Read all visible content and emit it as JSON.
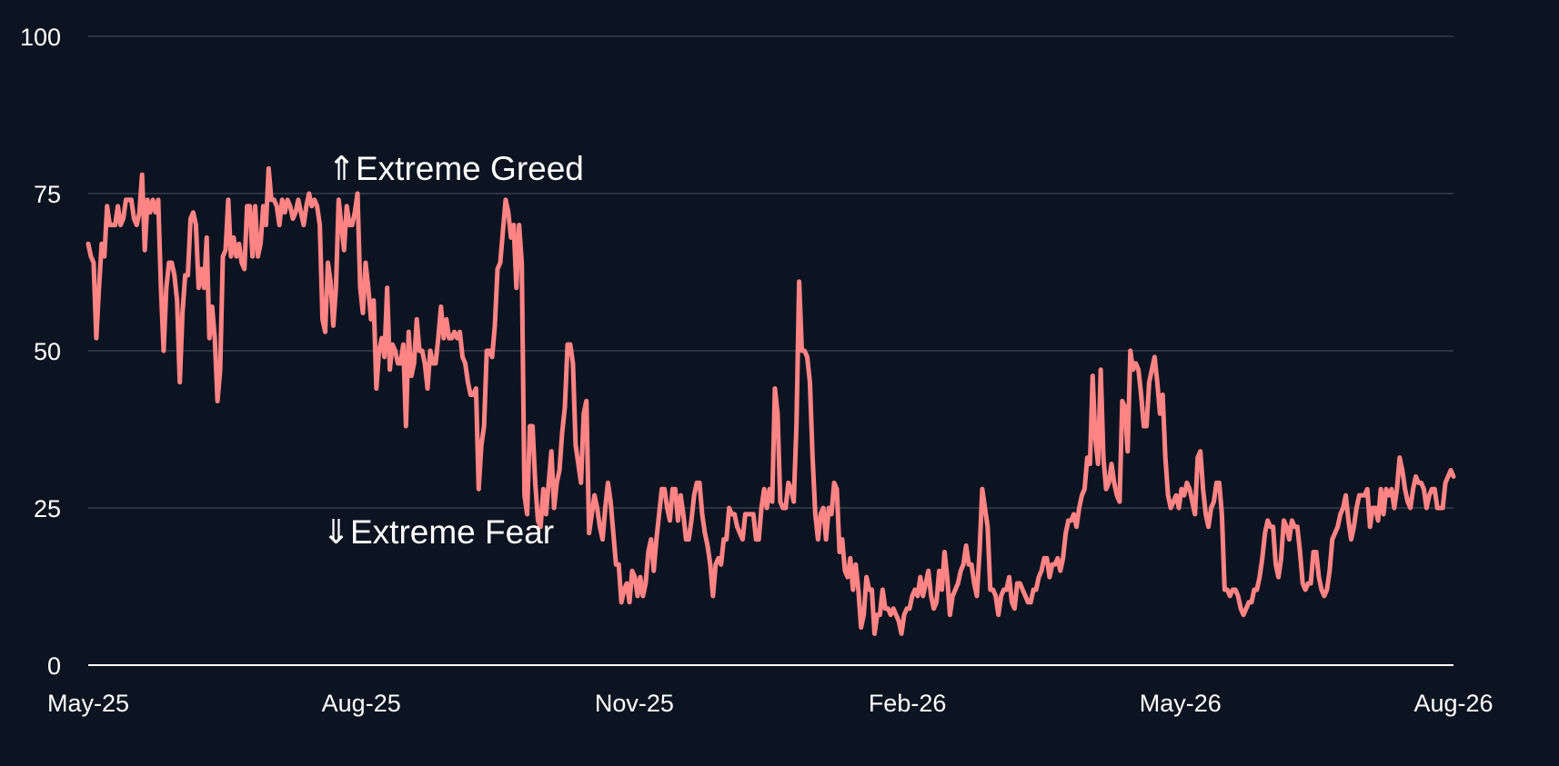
{
  "chart_data": {
    "type": "line",
    "title": "",
    "xlabel": "",
    "ylabel": "",
    "ylim": [
      0,
      100
    ],
    "yticks": [
      0,
      25,
      50,
      75,
      100
    ],
    "xticks": [
      "May-25",
      "Aug-25",
      "Nov-25",
      "Feb-26",
      "May-26",
      "Aug-26"
    ],
    "xlim": [
      "2025-05-01",
      "2026-08-01"
    ],
    "grid": true,
    "line_color": "#ff8484",
    "series": [
      {
        "values": [
          67,
          65,
          64,
          52,
          60,
          67,
          65,
          73,
          70,
          70,
          70,
          73,
          70,
          71,
          74,
          74,
          74,
          71,
          70,
          72,
          78,
          66,
          74,
          72,
          74,
          72,
          74,
          60,
          50,
          60,
          64,
          64,
          62,
          58,
          45,
          56,
          62,
          62,
          71,
          72,
          70,
          60,
          63,
          60,
          68,
          52,
          57,
          52,
          42,
          47,
          65,
          66,
          74,
          65,
          68,
          65,
          67,
          64,
          63,
          73,
          73,
          65,
          73,
          65,
          67,
          73,
          70,
          79,
          74,
          74,
          73,
          70,
          74,
          72,
          74,
          73,
          71,
          72,
          74,
          72,
          70,
          73,
          75,
          73,
          74,
          73,
          70,
          55,
          53,
          64,
          61,
          54,
          60,
          74,
          70,
          66,
          73,
          70,
          70,
          72,
          75,
          60,
          56,
          64,
          60,
          55,
          58,
          44,
          50,
          52,
          49,
          60,
          47,
          51,
          50,
          48,
          48,
          51,
          38,
          53,
          46,
          48,
          55,
          50,
          50,
          48,
          44,
          50,
          48,
          48,
          52,
          57,
          52,
          55,
          52,
          52,
          53,
          52,
          53,
          49,
          48,
          45,
          43,
          43,
          44,
          28,
          35,
          38,
          50,
          50,
          49,
          54,
          63,
          64,
          69,
          74,
          72,
          68,
          70,
          60,
          70,
          64,
          27,
          24,
          38,
          38,
          29,
          23,
          22,
          28,
          24,
          29,
          34,
          25,
          29,
          31,
          37,
          41,
          51,
          51,
          48,
          35,
          32,
          29,
          40,
          42,
          21,
          24,
          27,
          25,
          22,
          20,
          25,
          29,
          26,
          21,
          16,
          16,
          10,
          12,
          13,
          10,
          15,
          14,
          11,
          14,
          11,
          13,
          18,
          20,
          15,
          20,
          24,
          28,
          28,
          25,
          23,
          28,
          28,
          23,
          27,
          24,
          20,
          20,
          23,
          27,
          29,
          29,
          24,
          21,
          19,
          16,
          11,
          16,
          17,
          16,
          20,
          20,
          25,
          24,
          24,
          22,
          21,
          20,
          24,
          24,
          24,
          24,
          20,
          20,
          25,
          28,
          25,
          28,
          26,
          44,
          40,
          26,
          25,
          25,
          29,
          28,
          26,
          38,
          61,
          50,
          50,
          49,
          45,
          33,
          24,
          20,
          24,
          25,
          20,
          25,
          24,
          29,
          28,
          18,
          20,
          15,
          14,
          17,
          12,
          16,
          12,
          6,
          8,
          14,
          12,
          12,
          5,
          8,
          8,
          12,
          9,
          9,
          8,
          9,
          8,
          7,
          5,
          8,
          9,
          9,
          11,
          12,
          11,
          14,
          11,
          13,
          15,
          11,
          9,
          10,
          15,
          12,
          18,
          14,
          8,
          11,
          12,
          13,
          15,
          16,
          19,
          16,
          16,
          13,
          11,
          18,
          28,
          25,
          22,
          12,
          12,
          11,
          8,
          11,
          12,
          12,
          14,
          10,
          9,
          13,
          13,
          12,
          11,
          10,
          10,
          12,
          12,
          14,
          15,
          17,
          17,
          14,
          16,
          16,
          17,
          15,
          17,
          21,
          23,
          23,
          24,
          22,
          25,
          27,
          28,
          33,
          32,
          46,
          36,
          32,
          47,
          33,
          28,
          29,
          32,
          29,
          27,
          26,
          42,
          41,
          34,
          50,
          47,
          48,
          47,
          43,
          38,
          38,
          45,
          47,
          49,
          45,
          40,
          43,
          33,
          27,
          25,
          26,
          27,
          25,
          28,
          27,
          29,
          28,
          26,
          24,
          33,
          34,
          28,
          24,
          22,
          25,
          26,
          29,
          29,
          24,
          12,
          12,
          11,
          12,
          12,
          11,
          9,
          8,
          9,
          10,
          10,
          12,
          12,
          14,
          17,
          21,
          23,
          22,
          22,
          16,
          14,
          17,
          23,
          22,
          20,
          23,
          22,
          22,
          18,
          13,
          12,
          13,
          13,
          18,
          18,
          14,
          12,
          11,
          12,
          15,
          20,
          21,
          22,
          24,
          25,
          27,
          23,
          20,
          22,
          25,
          27,
          27,
          27,
          28,
          22,
          25,
          25,
          23,
          28,
          24,
          28,
          27,
          28,
          25,
          28,
          33,
          31,
          28,
          26,
          25,
          28,
          30,
          29,
          29,
          28,
          25,
          27,
          28,
          28,
          25,
          25,
          25,
          29,
          30,
          31,
          30
        ]
      }
    ],
    "annotations": [
      {
        "text": "⇑Extreme Greed"
      },
      {
        "text": "⇓Extreme Fear"
      }
    ]
  }
}
